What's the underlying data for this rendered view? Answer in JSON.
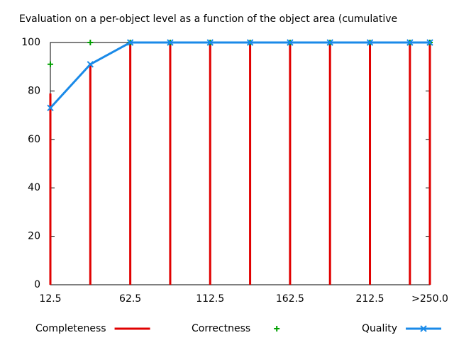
{
  "chart_data": {
    "type": "impulse-line",
    "title": "Evaluation on a per-object level as a function of the object area (cumulative",
    "x": [
      12.5,
      37.5,
      62.5,
      87.5,
      112.5,
      137.5,
      162.5,
      187.5,
      212.5,
      237.5,
      250
    ],
    "series": [
      {
        "name": "Completeness",
        "color": "#e00000",
        "style": "impulses",
        "values": [
          79,
          91,
          100,
          100,
          100,
          100,
          100,
          100,
          100,
          100,
          100
        ]
      },
      {
        "name": "Correctness",
        "color": "#00a000",
        "style": "points",
        "values": [
          91,
          100,
          100,
          100,
          100,
          100,
          100,
          100,
          100,
          100,
          100
        ]
      },
      {
        "name": "Quality",
        "color": "#1a8ae8",
        "style": "linespoints",
        "values": [
          73,
          91,
          100,
          100,
          100,
          100,
          100,
          100,
          100,
          100,
          100
        ]
      }
    ],
    "xlim": [
      12.5,
      250
    ],
    "xticks": [
      12.5,
      62.5,
      112.5,
      162.5,
      212.5,
      {
        "value": 250,
        "label": ">250.0"
      }
    ],
    "ylim": [
      0,
      100
    ],
    "yticks": [
      0,
      20,
      40,
      60,
      80,
      100
    ],
    "grid": false,
    "legend": "bottom"
  }
}
